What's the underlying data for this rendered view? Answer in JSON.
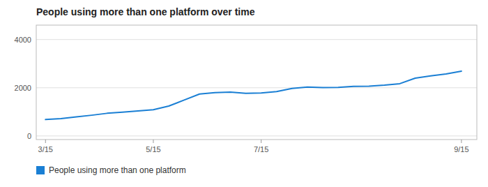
{
  "chart_data": {
    "type": "line",
    "title": "People using more than one platform over time",
    "x": [
      0,
      0.5,
      1.0,
      1.5,
      2.0,
      2.5,
      3.0,
      3.5,
      4.0,
      4.5,
      5.0,
      5.5,
      6.0,
      6.5,
      7.0,
      7.5,
      8.0,
      8.5,
      9.0,
      9.5,
      10.0,
      10.5,
      11.0,
      11.5,
      12.0,
      12.5,
      13.0,
      13.5
    ],
    "series": [
      {
        "name": "People using more than one platform",
        "color": "#1a7fd4",
        "values": [
          680,
          720,
          790,
          860,
          940,
          990,
          1040,
          1090,
          1240,
          1490,
          1740,
          1800,
          1820,
          1770,
          1780,
          1840,
          1970,
          2030,
          2010,
          2015,
          2055,
          2065,
          2110,
          2170,
          2400,
          2490,
          2570,
          2690
        ]
      }
    ],
    "xlim": [
      -0.3,
      14.0
    ],
    "xticks": [
      {
        "value": 0.0,
        "label": "3/15"
      },
      {
        "value": 3.5,
        "label": "5/15"
      },
      {
        "value": 7.0,
        "label": "7/15"
      },
      {
        "value": 13.5,
        "label": "9/15"
      }
    ],
    "ylim": [
      -150,
      4600
    ],
    "yticks": [
      0,
      2000,
      4000
    ],
    "grid": true,
    "legend": "bottom"
  }
}
